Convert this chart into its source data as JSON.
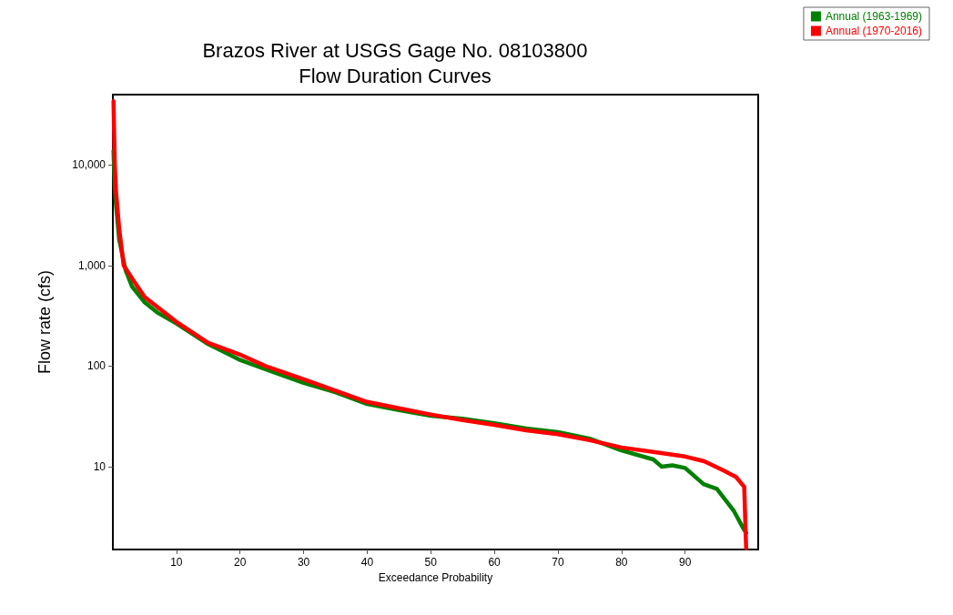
{
  "chart_data": {
    "type": "line",
    "title": "Brazos River at USGS Gage No. 08103800\nFlow Duration Curves",
    "xlabel": "Exceedance Probability",
    "ylabel": "Flow rate (cfs)",
    "series": [
      {
        "name": "Annual (1963-1969)",
        "color": "#008000",
        "x": [
          0.1,
          0.3,
          0.5,
          1,
          2,
          3,
          5,
          7,
          10,
          15,
          20,
          25,
          30,
          35,
          40,
          45,
          50,
          55,
          60,
          65,
          70,
          75,
          80,
          85,
          86.3,
          88,
          90,
          92.9,
          95,
          97.7,
          99.2,
          99.6
        ],
        "values": [
          13800,
          6000,
          4000,
          1800,
          900,
          620,
          430,
          340,
          265,
          165,
          115,
          88,
          68,
          55,
          42,
          36.5,
          32,
          30,
          27,
          24,
          22,
          19,
          14.5,
          11.8,
          10,
          10.3,
          9.7,
          6.7,
          6,
          3.6,
          2.4,
          2.2
        ]
      },
      {
        "name": "Annual (1970-2016)",
        "color": "#ff0000",
        "x": [
          0.1,
          0.3,
          0.5,
          1,
          1.7,
          3.3,
          5,
          10,
          15,
          20,
          24,
          30,
          35,
          40,
          45,
          50,
          55,
          60,
          65,
          70,
          75,
          80,
          85,
          90,
          93,
          96,
          98,
          99.3,
          99.6
        ],
        "values": [
          43000,
          10000,
          5400,
          2300,
          1000,
          700,
          485,
          275,
          170,
          130,
          100,
          74,
          57,
          44,
          38,
          33,
          29,
          26,
          23,
          21,
          18.3,
          15.5,
          14,
          12.6,
          11.3,
          9.2,
          7.9,
          6.3,
          1.55
        ]
      }
    ],
    "xlim": [
      0,
      101.5
    ],
    "xticks": [
      10,
      20,
      30,
      40,
      50,
      60,
      70,
      80,
      90
    ],
    "ylim": [
      1.5,
      50000
    ],
    "yticks": [
      10,
      100,
      {
        "value": 1000,
        "label": "1,000"
      },
      {
        "value": 10000,
        "label": "10,000"
      }
    ],
    "log": "y",
    "grid": false,
    "legend": "top right",
    "marker": "none",
    "line_style": "solid"
  }
}
